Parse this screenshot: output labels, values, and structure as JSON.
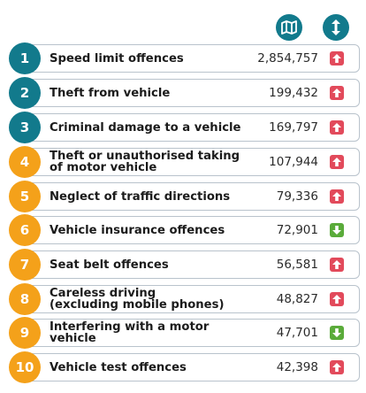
{
  "header": {
    "map_icon": "map-icon",
    "sort_icon": "sort-icon",
    "accent_color": "#127a8c"
  },
  "colors": {
    "rank_teal": "#127a8c",
    "rank_orange": "#f4a11a",
    "trend_up": "#e24a5b",
    "trend_down": "#5aab3a"
  },
  "offences": [
    {
      "rank": "1",
      "label": "Speed limit offences",
      "value": "2,854,757",
      "trend": "up",
      "rank_color": "teal"
    },
    {
      "rank": "2",
      "label": "Theft from vehicle",
      "value": "199,432",
      "trend": "up",
      "rank_color": "teal"
    },
    {
      "rank": "3",
      "label": "Criminal damage to a vehicle",
      "value": "169,797",
      "trend": "up",
      "rank_color": "teal"
    },
    {
      "rank": "4",
      "label": "Theft or unauthorised taking of motor vehicle",
      "label_line1": "Theft or unauthorised taking",
      "label_line2": "of motor vehicle",
      "value": "107,944",
      "trend": "up",
      "rank_color": "orange"
    },
    {
      "rank": "5",
      "label": "Neglect of traffic directions",
      "value": "79,336",
      "trend": "up",
      "rank_color": "orange"
    },
    {
      "rank": "6",
      "label": "Vehicle insurance offences",
      "value": "72,901",
      "trend": "down",
      "rank_color": "orange"
    },
    {
      "rank": "7",
      "label": "Seat belt offences",
      "value": "56,581",
      "trend": "up",
      "rank_color": "orange"
    },
    {
      "rank": "8",
      "label": "Careless driving (excluding mobile phones)",
      "label_line1": "Careless driving",
      "label_line2": "(excluding mobile phones)",
      "value": "48,827",
      "trend": "up",
      "rank_color": "orange"
    },
    {
      "rank": "9",
      "label": "Interfering with a motor vehicle",
      "value": "47,701",
      "trend": "down",
      "rank_color": "orange"
    },
    {
      "rank": "10",
      "label": "Vehicle test offences",
      "value": "42,398",
      "trend": "up",
      "rank_color": "orange"
    }
  ]
}
